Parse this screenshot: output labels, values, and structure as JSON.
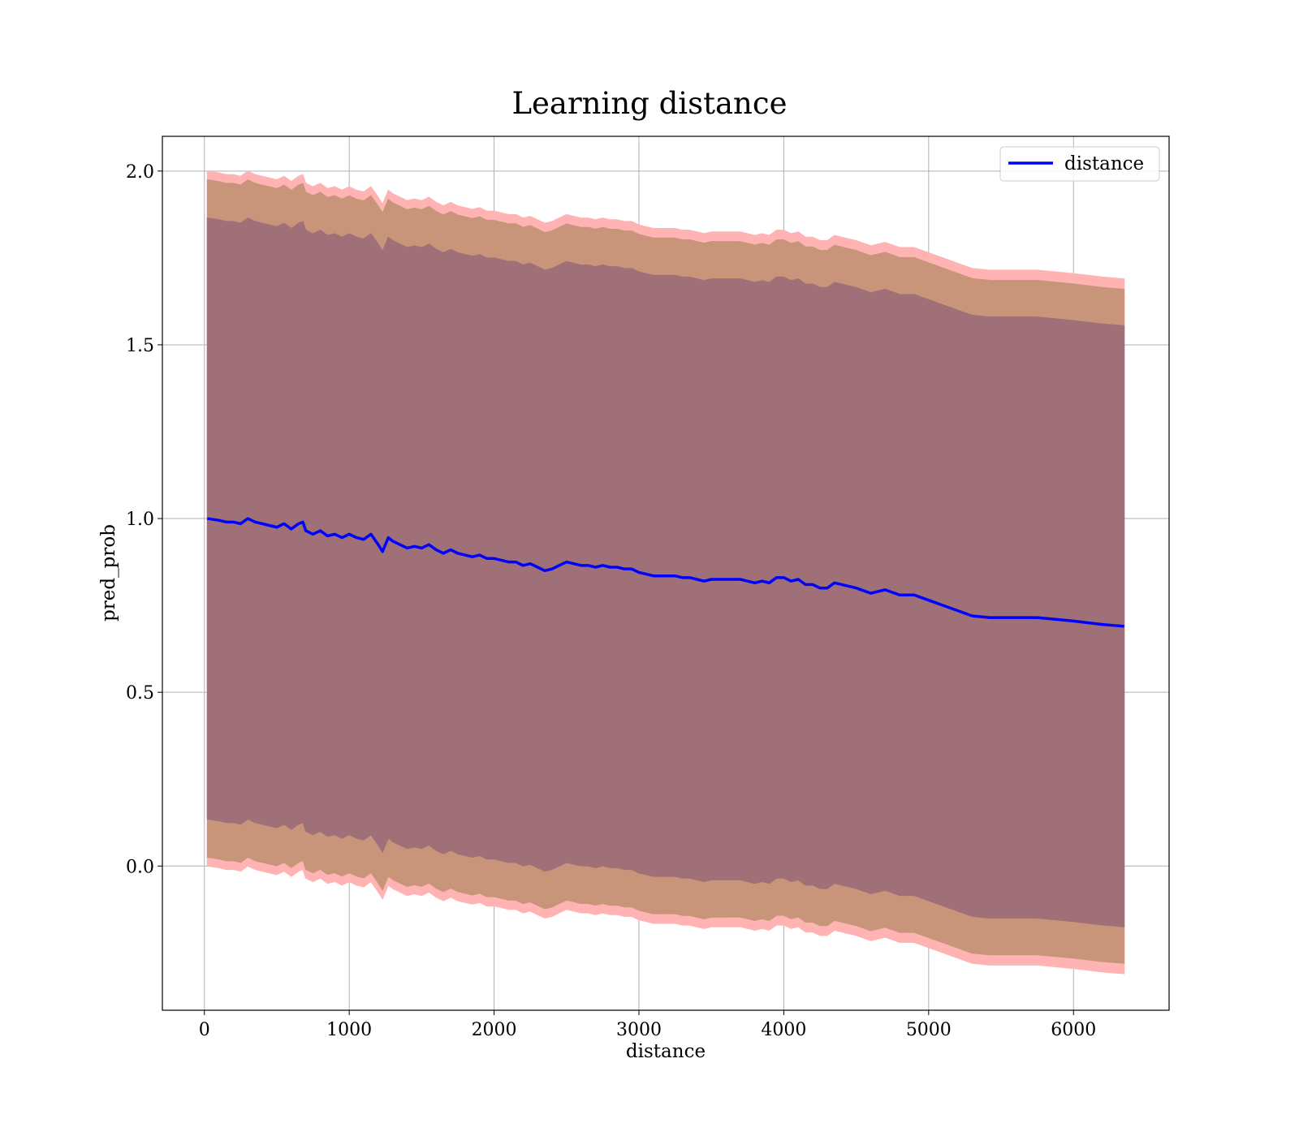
{
  "chart_data": {
    "type": "line",
    "title": "Learning distance",
    "xlabel": "distance",
    "ylabel": "pred_prob",
    "xlim": [
      -290,
      6660
    ],
    "ylim": [
      -0.415,
      2.1
    ],
    "xticks": [
      0,
      1000,
      2000,
      3000,
      4000,
      5000,
      6000
    ],
    "yticks": [
      0.0,
      0.5,
      1.0,
      1.5,
      2.0
    ],
    "xtick_labels": [
      "0",
      "1000",
      "2000",
      "3000",
      "4000",
      "5000",
      "6000"
    ],
    "ytick_labels": [
      "0.0",
      "0.5",
      "1.0",
      "1.5",
      "2.0"
    ],
    "grid": true,
    "legend": {
      "position": "top-right",
      "entries": [
        "distance"
      ]
    },
    "colors": {
      "line": "#0000ff",
      "band_outer": "#ffb3b3",
      "band_middle": "#c8957a",
      "band_inner": "#a07079",
      "grid": "#b0b0b0"
    },
    "series": [
      {
        "name": "distance",
        "x": [
          20,
          100,
          150,
          200,
          250,
          300,
          350,
          400,
          450,
          500,
          550,
          600,
          650,
          680,
          700,
          750,
          800,
          850,
          900,
          950,
          1000,
          1050,
          1100,
          1150,
          1200,
          1230,
          1270,
          1300,
          1350,
          1400,
          1450,
          1500,
          1550,
          1600,
          1650,
          1700,
          1750,
          1800,
          1850,
          1900,
          1950,
          2000,
          2050,
          2100,
          2150,
          2200,
          2250,
          2300,
          2350,
          2400,
          2450,
          2500,
          2550,
          2600,
          2650,
          2700,
          2750,
          2800,
          2850,
          2900,
          2950,
          3000,
          3050,
          3100,
          3150,
          3200,
          3250,
          3300,
          3350,
          3400,
          3450,
          3500,
          3550,
          3600,
          3650,
          3700,
          3750,
          3800,
          3850,
          3900,
          3950,
          4000,
          4050,
          4100,
          4150,
          4200,
          4250,
          4300,
          4350,
          4400,
          4500,
          4600,
          4700,
          4800,
          4900,
          5000,
          5100,
          5200,
          5300,
          5420,
          5600,
          5750,
          6000,
          6200,
          6350
        ],
        "values": [
          1.0,
          0.995,
          0.99,
          0.99,
          0.985,
          1.0,
          0.99,
          0.985,
          0.98,
          0.975,
          0.985,
          0.97,
          0.985,
          0.99,
          0.965,
          0.955,
          0.965,
          0.95,
          0.955,
          0.945,
          0.955,
          0.945,
          0.94,
          0.955,
          0.925,
          0.905,
          0.945,
          0.935,
          0.925,
          0.915,
          0.92,
          0.915,
          0.925,
          0.91,
          0.9,
          0.91,
          0.9,
          0.895,
          0.89,
          0.895,
          0.885,
          0.885,
          0.88,
          0.875,
          0.875,
          0.865,
          0.87,
          0.86,
          0.85,
          0.855,
          0.865,
          0.875,
          0.87,
          0.865,
          0.865,
          0.86,
          0.865,
          0.86,
          0.86,
          0.855,
          0.855,
          0.845,
          0.84,
          0.835,
          0.835,
          0.835,
          0.835,
          0.83,
          0.83,
          0.825,
          0.82,
          0.825,
          0.825,
          0.825,
          0.825,
          0.825,
          0.82,
          0.815,
          0.82,
          0.815,
          0.83,
          0.83,
          0.82,
          0.825,
          0.81,
          0.81,
          0.8,
          0.8,
          0.815,
          0.81,
          0.8,
          0.785,
          0.795,
          0.78,
          0.78,
          0.765,
          0.75,
          0.735,
          0.72,
          0.715,
          0.715,
          0.715,
          0.705,
          0.695,
          0.69
        ],
        "bands": [
          {
            "name": "",
            "half_width_start": 1.0,
            "half_width_end": 1.0
          },
          {
            "name": "",
            "half_width_start": 0.975,
            "half_width_end": 0.97
          },
          {
            "name": "",
            "half_width_start": 0.865,
            "half_width_end": 0.865
          }
        ]
      }
    ]
  }
}
